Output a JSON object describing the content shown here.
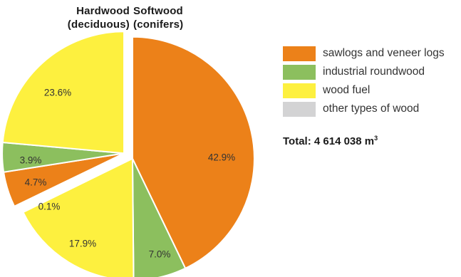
{
  "chart_data": {
    "type": "pie",
    "groups": [
      {
        "name": "Softwood\n(conifers)",
        "slices": [
          {
            "category": "sawlogs and veneer logs",
            "value": 42.9,
            "label": "42.9%"
          },
          {
            "category": "industrial roundwood",
            "value": 7.0,
            "label": "7.0%"
          },
          {
            "category": "wood fuel",
            "value": 17.9,
            "label": "17.9%"
          }
        ]
      },
      {
        "name": "Hardwood\n(deciduous)",
        "slices": [
          {
            "category": "other types of wood",
            "value": 0.1,
            "label": "0.1%"
          },
          {
            "category": "sawlogs and veneer logs",
            "value": 4.7,
            "label": "4.7%"
          },
          {
            "category": "industrial roundwood",
            "value": 3.9,
            "label": "3.9%"
          },
          {
            "category": "wood fuel",
            "value": 23.6,
            "label": "23.6%"
          }
        ]
      }
    ],
    "legend": [
      {
        "label": "sawlogs and veneer logs",
        "color": "#ec8119"
      },
      {
        "label": "industrial roundwood",
        "color": "#8cbf5e"
      },
      {
        "label": "wood fuel",
        "color": "#fdf03f"
      },
      {
        "label": "other types of wood",
        "color": "#d3d3d4"
      }
    ],
    "legend_position": "right",
    "total_text": "Total: 4 614 038 m",
    "total_unit_sup": "3"
  }
}
